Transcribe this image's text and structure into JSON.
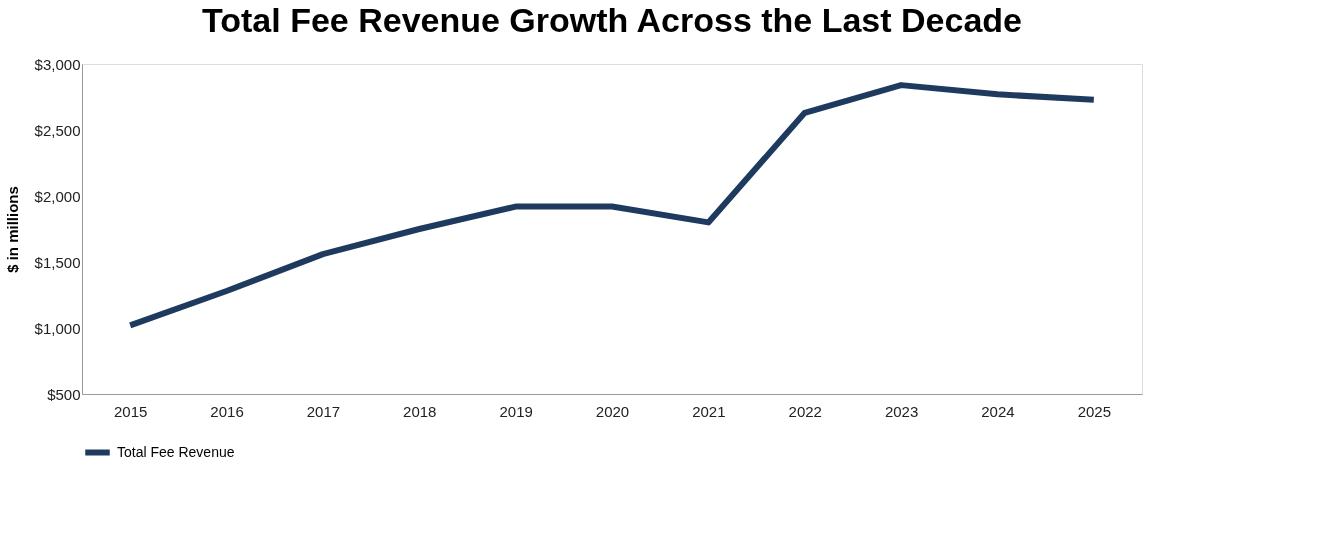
{
  "chart_data": {
    "type": "line",
    "title": "Total Fee Revenue Growth Across the Last Decade",
    "ylabel": "$ in millions",
    "categories": [
      "2015",
      "2016",
      "2017",
      "2018",
      "2019",
      "2020",
      "2021",
      "2022",
      "2023",
      "2024",
      "2025"
    ],
    "series": [
      {
        "name": "Total Fee Revenue",
        "color": "#1f3a5f",
        "values": [
          1020,
          1280,
          1560,
          1750,
          1920,
          1920,
          1800,
          2630,
          2840,
          2770,
          2730
        ]
      }
    ],
    "ylim": [
      500,
      3000
    ],
    "yticks": [
      {
        "value": 500,
        "label": "$500"
      },
      {
        "value": 1000,
        "label": "$1,000"
      },
      {
        "value": 1500,
        "label": "$1,500"
      },
      {
        "value": 2000,
        "label": "$2,000"
      },
      {
        "value": 2500,
        "label": "$2,500"
      },
      {
        "value": 3000,
        "label": "$3,000"
      }
    ],
    "grid": false,
    "legend": "bottom",
    "marker": "none",
    "line_style": "solid"
  }
}
